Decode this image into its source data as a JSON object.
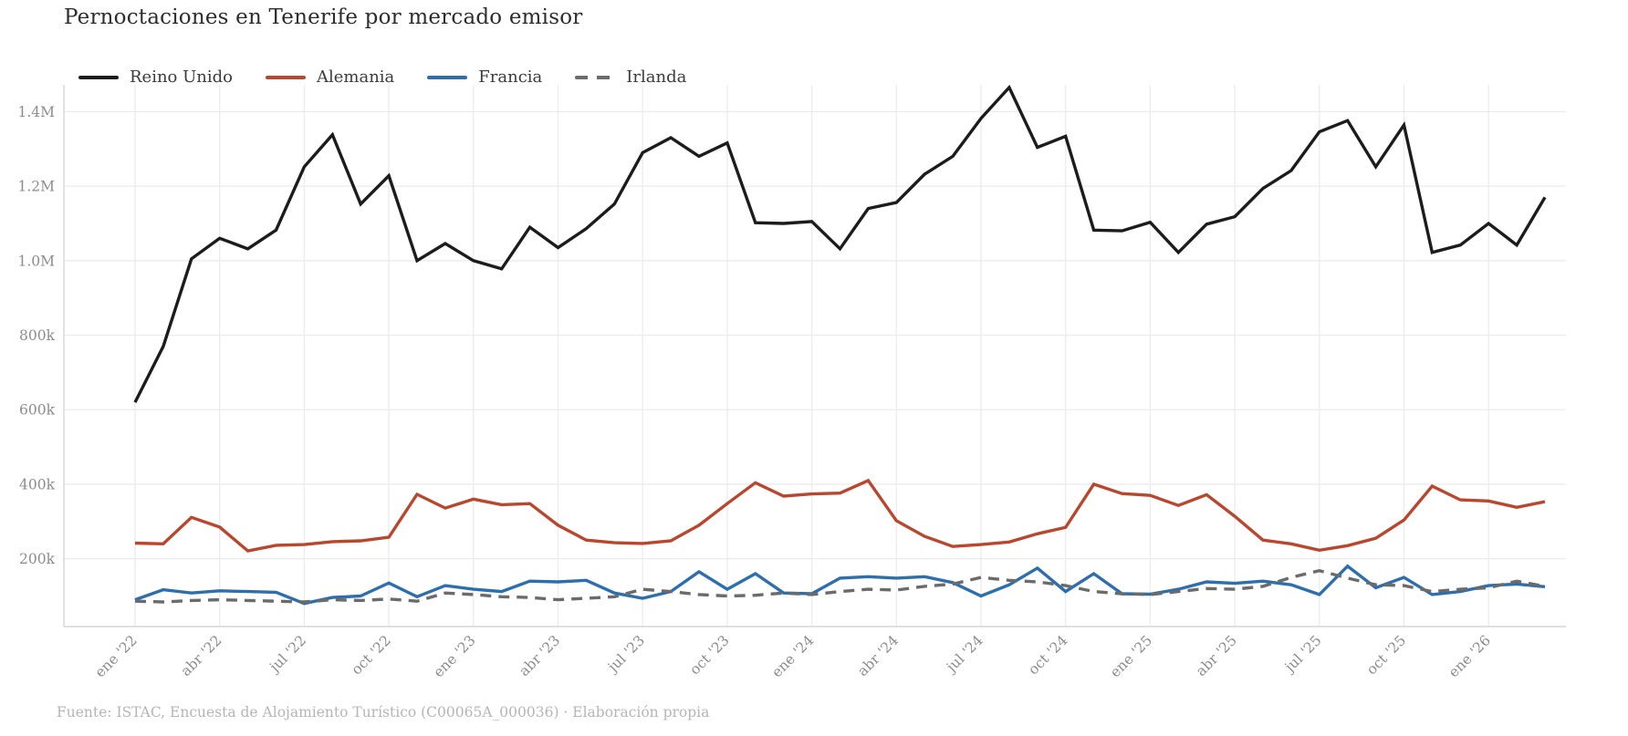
{
  "title": "Pernoctaciones en Tenerife por mercado emisor",
  "footer": "Fuente: ISTAC, Encuesta de Alojamiento Turístico (C00065A_000036)  ·  Elaboración propia",
  "colors": {
    "grid": "#ececec",
    "axis_line": "#d6d6d6",
    "tick_label": "#8c8c8c",
    "title_text": "#2d2d2d",
    "legend_text": "#3b3b3b",
    "footer_text": "#b5b5b5",
    "background": "#ffffff"
  },
  "chart_data": {
    "type": "line",
    "title": "Pernoctaciones en Tenerife por mercado emisor",
    "x_start_month": "ene 2022",
    "x_end_month": "mar 2026",
    "points_per_series": 51,
    "x_tick_every_n_points": 3,
    "x_tick_labels": [
      "ene '22",
      "abr '22",
      "jul '22",
      "oct '22",
      "ene '23",
      "abr '23",
      "jul '23",
      "oct '23",
      "ene '24",
      "abr '24",
      "jul '24",
      "oct '24",
      "ene '25",
      "abr '25",
      "jul '25",
      "oct '25",
      "ene '26"
    ],
    "y_ticks": [
      {
        "label": "200k",
        "value": 200000
      },
      {
        "label": "400k",
        "value": 400000
      },
      {
        "label": "600k",
        "value": 600000
      },
      {
        "label": "800k",
        "value": 800000
      },
      {
        "label": "1.0M",
        "value": 1000000
      },
      {
        "label": "1.2M",
        "value": 1200000
      },
      {
        "label": "1.4M",
        "value": 1400000
      }
    ],
    "y_range": [
      18000,
      1472000
    ],
    "grid": true,
    "legend_position": "top-left-horizontal",
    "series": [
      {
        "name": "Reino Unido",
        "color": "#1c1c1c",
        "dash": "solid",
        "values": [
          620000,
          770000,
          1005000,
          1060000,
          1032000,
          1082000,
          1252000,
          1338000,
          1152000,
          1228000,
          1000000,
          1046000,
          1000000,
          978000,
          1090000,
          1035000,
          1086000,
          1152000,
          1290000,
          1330000,
          1280000,
          1316000,
          1102000,
          1100000,
          1105000,
          1032000,
          1140000,
          1156000,
          1232000,
          1280000,
          1382000,
          1465000,
          1304000,
          1334000,
          1082000,
          1080000,
          1103000,
          1022000,
          1098000,
          1118000,
          1194000,
          1242000,
          1346000,
          1376000,
          1252000,
          1364000,
          1022000,
          1042000,
          1100000,
          1042000,
          1170000
        ]
      },
      {
        "name": "Alemania",
        "color": "#b9472e",
        "dash": "solid",
        "values": [
          242000,
          240000,
          311000,
          285000,
          221000,
          236000,
          238000,
          246000,
          248000,
          258000,
          373000,
          336000,
          360000,
          345000,
          348000,
          290000,
          250000,
          243000,
          241000,
          248000,
          290000,
          348000,
          404000,
          368000,
          374000,
          376000,
          410000,
          302000,
          260000,
          233000,
          238000,
          245000,
          267000,
          284000,
          400000,
          375000,
          370000,
          343000,
          372000,
          314000,
          250000,
          240000,
          223000,
          235000,
          255000,
          304000,
          395000,
          358000,
          355000,
          338000,
          353000
        ]
      },
      {
        "name": "Francia",
        "color": "#2d6eaf",
        "dash": "solid",
        "values": [
          90000,
          117000,
          108000,
          114000,
          112000,
          110000,
          80000,
          96000,
          100000,
          135000,
          98000,
          128000,
          118000,
          112000,
          140000,
          138000,
          142000,
          108000,
          94000,
          112000,
          165000,
          118000,
          160000,
          108000,
          106000,
          148000,
          152000,
          148000,
          152000,
          136000,
          100000,
          130000,
          175000,
          112000,
          160000,
          106000,
          105000,
          118000,
          138000,
          134000,
          140000,
          130000,
          104000,
          180000,
          122000,
          150000,
          104000,
          112000,
          128000,
          132000,
          125000
        ]
      },
      {
        "name": "Irlanda",
        "color": "#6b6b6b",
        "dash": "dashed",
        "values": [
          86000,
          84000,
          88000,
          90000,
          88000,
          86000,
          84000,
          90000,
          88000,
          92000,
          86000,
          108000,
          104000,
          98000,
          96000,
          90000,
          94000,
          98000,
          118000,
          112000,
          104000,
          100000,
          102000,
          108000,
          104000,
          112000,
          118000,
          116000,
          126000,
          132000,
          150000,
          142000,
          138000,
          128000,
          112000,
          106000,
          104000,
          112000,
          120000,
          118000,
          126000,
          150000,
          168000,
          148000,
          130000,
          128000,
          112000,
          118000,
          122000,
          140000,
          126000
        ]
      }
    ]
  }
}
